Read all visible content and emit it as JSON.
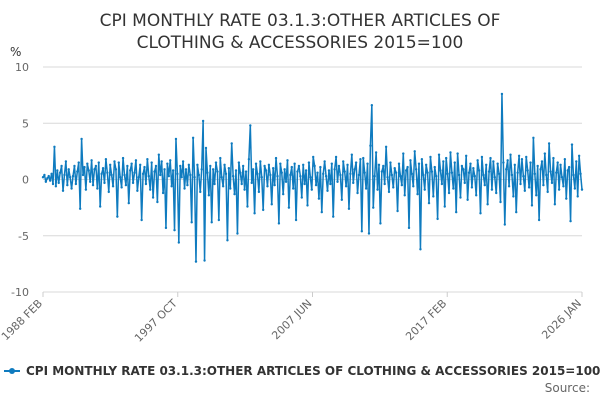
{
  "chart_data": {
    "type": "line",
    "title_lines": [
      "CPI MONTHLY RATE 03.1.3:OTHER ARTICLES OF",
      "CLOTHING & ACCESSORIES 2015=100"
    ],
    "ylabel": "%",
    "ylim": [
      -10,
      10
    ],
    "y_ticks": [
      10,
      5,
      0,
      -5,
      -10
    ],
    "x_tick_labels": [
      "1988 FEB",
      "1997 OCT",
      "2007 JUN",
      "2017 FEB",
      "2026 JAN"
    ],
    "x_start": "1988-02",
    "x_end": "2026-01",
    "grid": true,
    "legend_position": "bottom",
    "series": [
      {
        "name": "CPI MONTHLY RATE 03.1.3:OTHER ARTICLES OF CLOTHING & ACCESSORIES 2015=100",
        "color": "#0f7bbf",
        "monthly_values_from_1988_02": [
          0.2,
          0.4,
          -0.2,
          0.1,
          0.3,
          -0.1,
          0.5,
          -0.4,
          2.9,
          -0.6,
          0.8,
          -0.3,
          0.6,
          1.2,
          -1.0,
          0.4,
          1.6,
          -0.5,
          0.9,
          0.2,
          -0.8,
          0.3,
          1.2,
          -0.4,
          0.7,
          1.5,
          -2.6,
          3.6,
          0.4,
          1.1,
          -0.9,
          1.4,
          0.8,
          -0.2,
          1.7,
          -0.5,
          0.9,
          1.2,
          -0.8,
          1.5,
          -2.4,
          0.5,
          1.0,
          -0.3,
          1.8,
          0.6,
          -1.1,
          1.3,
          0.4,
          -0.6,
          1.6,
          0.9,
          -3.3,
          1.5,
          0.2,
          -0.7,
          1.9,
          0.4,
          -0.5,
          1.2,
          -2.1,
          0.8,
          1.4,
          -0.3,
          0.6,
          1.7,
          -1.0,
          0.2,
          1.3,
          -3.6,
          0.5,
          1.1,
          -0.4,
          1.8,
          0.3,
          -0.9,
          1.5,
          -1.6,
          0.7,
          1.2,
          -2.0,
          2.2,
          0.4,
          1.6,
          -1.2,
          0.9,
          -4.3,
          1.4,
          0.3,
          1.7,
          -0.6,
          0.8,
          -4.5,
          3.6,
          0.5,
          -5.6,
          1.2,
          0.2,
          1.6,
          -0.8,
          0.9,
          -0.5,
          1.3,
          0.4,
          -3.8,
          3.7,
          0.2,
          -7.3,
          1.3,
          0.4,
          -1.1,
          0.9,
          5.2,
          -7.2,
          2.8,
          0.6,
          -1.4,
          1.2,
          -3.8,
          0.9,
          -0.4,
          1.5,
          0.7,
          -3.6,
          1.9,
          0.2,
          -0.6,
          1.3,
          0.5,
          -5.4,
          1.0,
          -0.8,
          3.2,
          0.3,
          -1.3,
          0.8,
          -4.8,
          1.5,
          0.6,
          -0.4,
          1.2,
          -0.9,
          0.7,
          -2.4,
          1.8,
          4.8,
          -0.3,
          0.9,
          -3.0,
          1.4,
          0.5,
          -1.1,
          1.6,
          0.2,
          -2.7,
          1.2,
          0.8,
          -0.6,
          1.3,
          0.4,
          -2.2,
          1.0,
          -0.5,
          1.9,
          0.3,
          -3.9,
          1.4,
          0.6,
          -1.3,
          0.9,
          -0.2,
          1.7,
          -2.5,
          0.4,
          1.1,
          -0.8,
          1.4,
          -3.6,
          0.7,
          1.2,
          0.3,
          -1.6,
          1.3,
          -0.4,
          0.8,
          -2.3,
          1.5,
          0.2,
          -0.9,
          2.0,
          1.2,
          -0.5,
          0.6,
          -1.7,
          1.1,
          -2.9,
          0.5,
          1.6,
          0.3,
          -1.0,
          0.8,
          -0.4,
          1.4,
          -3.3,
          0.9,
          2.0,
          -0.2,
          1.2,
          0.4,
          -1.8,
          1.6,
          0.7,
          -0.6,
          1.3,
          -2.6,
          0.5,
          2.2,
          -0.3,
          0.9,
          1.5,
          -1.2,
          0.4,
          1.8,
          -4.6,
          1.9,
          0.6,
          -0.8,
          1.4,
          -4.8,
          3.0,
          6.6,
          -2.5,
          0.3,
          2.4,
          -0.9,
          1.3,
          -3.9,
          0.7,
          1.2,
          -0.4,
          2.9,
          0.2,
          -1.1,
          1.5,
          0.4,
          -0.7,
          1.0,
          0.6,
          -2.8,
          1.4,
          0.3,
          -0.5,
          2.3,
          -1.4,
          0.8,
          1.1,
          -4.3,
          1.7,
          0.5,
          -0.6,
          2.5,
          0.9,
          -1.3,
          1.4,
          -6.2,
          1.8,
          0.4,
          -0.9,
          1.3,
          0.6,
          -2.1,
          2.0,
          0.7,
          -1.5,
          1.1,
          0.3,
          -3.5,
          2.2,
          0.8,
          -0.4,
          1.6,
          -2.4,
          1.9,
          0.5,
          -1.2,
          2.4,
          0.6,
          -0.8,
          1.5,
          -2.9,
          2.3,
          0.4,
          -1.6,
          1.2,
          0.9,
          -0.3,
          2.1,
          -1.8,
          0.6,
          1.4,
          -0.7,
          1.0,
          0.3,
          -1.4,
          1.7,
          0.8,
          -3.0,
          2.0,
          0.4,
          -0.5,
          1.3,
          -2.2,
          0.7,
          1.9,
          -0.9,
          1.6,
          0.2,
          -1.2,
          1.4,
          0.5,
          -2.0,
          7.6,
          1.5,
          -4.0,
          0.9,
          1.7,
          -0.6,
          2.2,
          0.4,
          -1.5,
          1.3,
          -2.9,
          0.6,
          2.1,
          -0.4,
          1.8,
          0.3,
          -1.0,
          2.0,
          0.8,
          -0.7,
          1.5,
          -2.3,
          3.7,
          0.5,
          -1.4,
          1.2,
          -3.6,
          0.9,
          1.6,
          -0.5,
          2.3,
          0.4,
          -1.1,
          3.2,
          0.7,
          -0.3,
          1.9,
          -2.2,
          0.6,
          1.5,
          -0.9,
          1.3,
          0.2,
          -0.6,
          1.8,
          -1.7,
          0.8,
          1.1,
          -3.7,
          3.1,
          0.4,
          -0.8,
          1.6,
          -1.5,
          2.1,
          0.5,
          -0.9
        ]
      }
    ]
  },
  "source_label": "Source:"
}
